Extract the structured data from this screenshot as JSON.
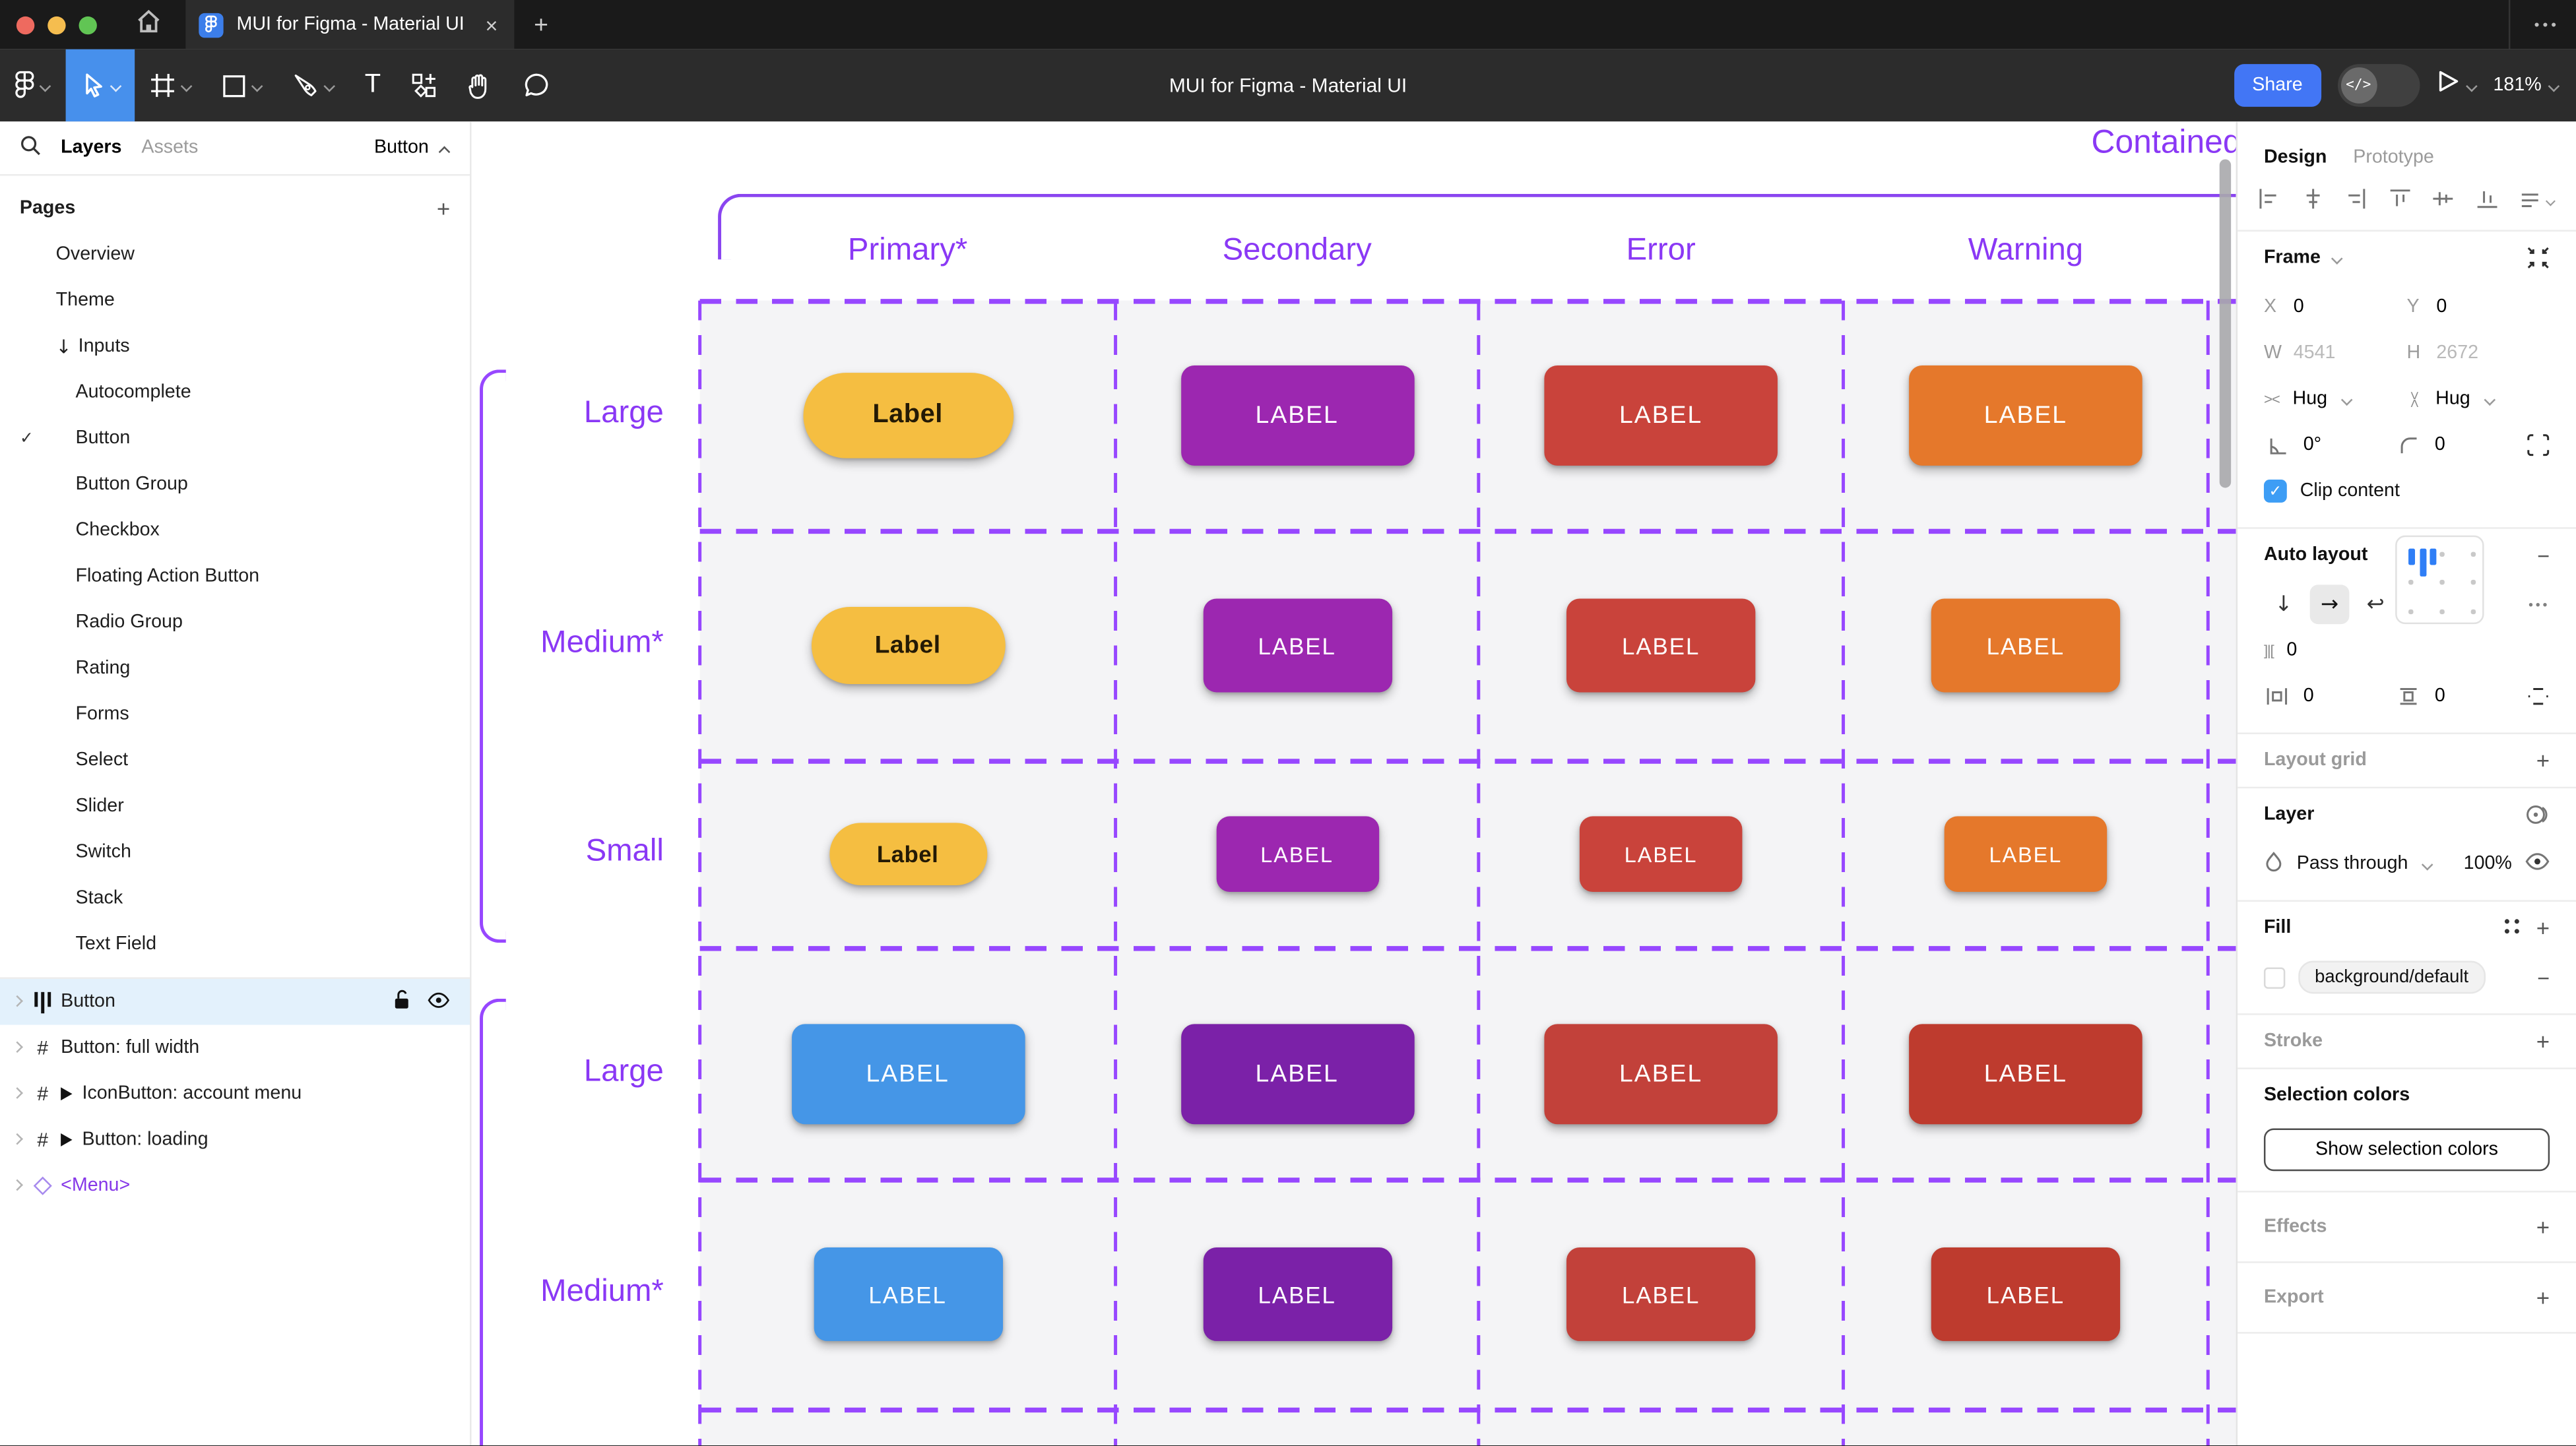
{
  "window": {
    "tab_title": "MUI for Figma - Material UI",
    "close_icon": "×",
    "new_tab_icon": "+",
    "more_icon": "•••",
    "traffic_light_colors": [
      "#ee6a5f",
      "#f5bd4f",
      "#61c554"
    ]
  },
  "toolbar": {
    "document_title": "MUI for Figma - Material UI",
    "tools": [
      "figma-menu",
      "move",
      "frame",
      "shape",
      "pen",
      "text",
      "actions",
      "hand",
      "comment"
    ],
    "text_tool_glyph": "T",
    "share_label": "Share",
    "dev_mode_glyph": "</>",
    "zoom_value": "181%"
  },
  "sidebar": {
    "layers_tab": "Layers",
    "assets_tab": "Assets",
    "page_selector": "Button",
    "pages_title": "Pages",
    "pages": [
      {
        "label": "Overview",
        "indent": 1
      },
      {
        "label": "Theme",
        "indent": 1
      },
      {
        "label": "Inputs",
        "indent": 1,
        "prefix": "↓"
      },
      {
        "label": "Autocomplete",
        "indent": 2
      },
      {
        "label": "Button",
        "indent": 2,
        "checked": true
      },
      {
        "label": "Button Group",
        "indent": 2
      },
      {
        "label": "Checkbox",
        "indent": 2
      },
      {
        "label": "Floating Action Button",
        "indent": 2
      },
      {
        "label": "Radio Group",
        "indent": 2
      },
      {
        "label": "Rating",
        "indent": 2
      },
      {
        "label": "Forms",
        "indent": 2
      },
      {
        "label": "Select",
        "indent": 2
      },
      {
        "label": "Slider",
        "indent": 2
      },
      {
        "label": "Switch",
        "indent": 2
      },
      {
        "label": "Stack",
        "indent": 2
      },
      {
        "label": "Text Field",
        "indent": 2
      }
    ],
    "layers": [
      {
        "label": "Button",
        "icon": "auto-layout",
        "selected": true
      },
      {
        "label": "Button: full width",
        "icon": "frame"
      },
      {
        "label": "IconButton: account menu",
        "icon": "frame",
        "arrow": true
      },
      {
        "label": "Button: loading",
        "icon": "frame",
        "arrow": true
      },
      {
        "label": "<Menu>",
        "icon": "instance"
      }
    ]
  },
  "canvas": {
    "frame_title": "Contained",
    "annotation_color": "#9747ff",
    "columns": [
      "Primary*",
      "Secondary",
      "Error",
      "Warning"
    ],
    "rows": [
      {
        "label": "Large",
        "size": "large",
        "cells": [
          {
            "text": "Label",
            "bg": "#f5be41",
            "fg": "#241a05",
            "pill": true
          },
          {
            "text": "LABEL",
            "bg": "#9c27b0",
            "fg": "#ffffff"
          },
          {
            "text": "LABEL",
            "bg": "#c9433b",
            "fg": "#ffffff"
          },
          {
            "text": "LABEL",
            "bg": "#e5782b",
            "fg": "#ffffff"
          }
        ]
      },
      {
        "label": "Medium*",
        "size": "medium",
        "cells": [
          {
            "text": "Label",
            "bg": "#f5be41",
            "fg": "#241a05",
            "pill": true
          },
          {
            "text": "LABEL",
            "bg": "#9c27b0",
            "fg": "#ffffff"
          },
          {
            "text": "LABEL",
            "bg": "#c9433b",
            "fg": "#ffffff"
          },
          {
            "text": "LABEL",
            "bg": "#e5782b",
            "fg": "#ffffff"
          }
        ]
      },
      {
        "label": "Small",
        "size": "small",
        "cells": [
          {
            "text": "Label",
            "bg": "#f5be41",
            "fg": "#241a05",
            "pill": true
          },
          {
            "text": "LABEL",
            "bg": "#9c27b0",
            "fg": "#ffffff"
          },
          {
            "text": "LABEL",
            "bg": "#c9433b",
            "fg": "#ffffff"
          },
          {
            "text": "LABEL",
            "bg": "#e5782b",
            "fg": "#ffffff"
          }
        ]
      },
      {
        "label": "Large",
        "size": "large",
        "cells": [
          {
            "text": "LABEL",
            "bg": "#4596e7",
            "fg": "#ffffff"
          },
          {
            "text": "LABEL",
            "bg": "#7b21a8",
            "fg": "#ffffff"
          },
          {
            "text": "LABEL",
            "bg": "#c2413a",
            "fg": "#ffffff"
          },
          {
            "text": "LABEL",
            "bg": "#be3b2e",
            "fg": "#ffffff"
          }
        ]
      },
      {
        "label": "Medium*",
        "size": "medium",
        "cells": [
          {
            "text": "LABEL",
            "bg": "#4596e7",
            "fg": "#ffffff"
          },
          {
            "text": "LABEL",
            "bg": "#7b21a8",
            "fg": "#ffffff"
          },
          {
            "text": "LABEL",
            "bg": "#c2413a",
            "fg": "#ffffff"
          },
          {
            "text": "LABEL",
            "bg": "#be3b2e",
            "fg": "#ffffff"
          }
        ]
      }
    ]
  },
  "inspector": {
    "design_tab": "Design",
    "prototype_tab": "Prototype",
    "frame": {
      "title": "Frame",
      "x_label": "X",
      "x": "0",
      "y_label": "Y",
      "y": "0",
      "w_label": "W",
      "w": "4541",
      "h_label": "H",
      "h": "2672",
      "h_sizing": "Hug",
      "v_sizing": "Hug",
      "rotation": "0°",
      "corner_radius": "0",
      "clip_label": "Clip content",
      "clip_checked": "✓"
    },
    "auto_layout": {
      "title": "Auto layout",
      "gap": "0",
      "padding_h": "0",
      "padding_v": "0"
    },
    "layout_grid": {
      "title": "Layout grid"
    },
    "layer": {
      "title": "Layer",
      "blend_mode": "Pass through",
      "opacity": "100%"
    },
    "fill": {
      "title": "Fill",
      "style_token": "background/default"
    },
    "stroke": {
      "title": "Stroke"
    },
    "selection_colors": {
      "title": "Selection colors",
      "button_label": "Show selection colors"
    },
    "effects": {
      "title": "Effects"
    },
    "export": {
      "title": "Export"
    }
  }
}
